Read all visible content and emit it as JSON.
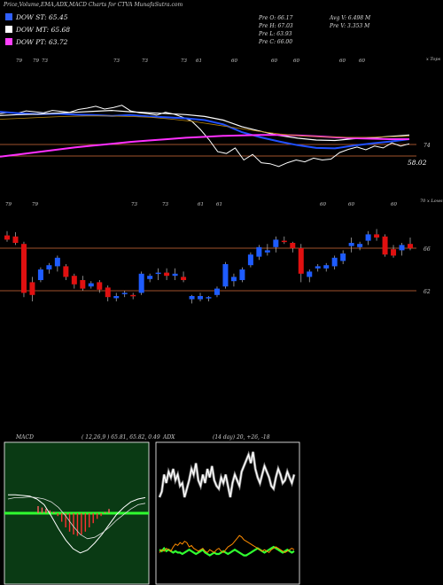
{
  "header": {
    "title": "Price,Volume,EMA,ADX,MACD Charts for CTVA MunafaSutra.com"
  },
  "legend": [
    {
      "label": "DOW ST: 65.45",
      "color": "#3060ff"
    },
    {
      "label": "DOW MT: 65.68",
      "color": "#ffffff"
    },
    {
      "label": "DOW PT: 63.72",
      "color": "#ff40ff"
    }
  ],
  "stats": {
    "open": "Pre  O: 66.17",
    "high": "Pre  H: 67.03",
    "low": "Pre  L: 63.93",
    "close": "Pre  C: 66.00",
    "avg_vol": "Avg V: 6.498  M",
    "pre_vol": "Pre  V: 3.353 M"
  },
  "colors": {
    "up": "#1e5cff",
    "down": "#e01010",
    "ema_short": "#2050ff",
    "ema_mid": "#ffffff",
    "ema_long": "#ff30ff",
    "level_line": "#a0522d",
    "macd_bg": "#0a3a14",
    "macd_signal": "#30ff30",
    "adx_line": "#ffffff",
    "di_plus": "#30ff30",
    "di_minus": "#ff8c00"
  },
  "chart_data": [
    {
      "type": "line",
      "title": "",
      "name": "ema-panel",
      "top_labels": [
        "79",
        "79",
        "73",
        "73",
        "73",
        "73",
        "61",
        "60",
        "60",
        "60",
        "60",
        "60"
      ],
      "right_labels": [
        "x Tops",
        "74",
        "58.02"
      ],
      "bottom_labels": [
        "79",
        "79",
        "73",
        "73",
        "61",
        "61",
        "60",
        "60",
        "60"
      ],
      "bottom_right_label": "70 x Lows",
      "series": [
        {
          "name": "DOW ST",
          "values": [
            75,
            74.7,
            74.5,
            74.6,
            74.4,
            74.3,
            74.1,
            74.3,
            74,
            73.8,
            73.6,
            73.2,
            72.3,
            70.6,
            69.5,
            68.6,
            67.8,
            67.2,
            67.1,
            67.7,
            68.2,
            68.6,
            69.1
          ]
        },
        {
          "name": "DOW MT",
          "values": [
            74.2,
            74.4,
            74.5,
            74.7,
            74.9,
            75.1,
            75.3,
            75,
            74.8,
            74.6,
            74.4,
            74,
            73.2,
            71.8,
            70.8,
            69.9,
            69.3,
            68.9,
            68.8,
            69.2,
            69.4,
            69.7,
            70
          ]
        },
        {
          "name": "DOW PT",
          "values": [
            65.3,
            65.8,
            66.3,
            66.8,
            67.3,
            67.7,
            68.1,
            68.5,
            68.8,
            69.1,
            69.4,
            69.6,
            69.8,
            69.9,
            70,
            70,
            69.9,
            69.7,
            69.5,
            69.3,
            69.2,
            69.1,
            69.1
          ]
        }
      ],
      "ylim": [
        58,
        80
      ]
    },
    {
      "type": "bar",
      "name": "candles",
      "right_labels": [
        "66",
        "62"
      ],
      "candles": [
        [
          67.2,
          67.6,
          66.6,
          66.8
        ],
        [
          67.1,
          67.5,
          66.3,
          66.5
        ],
        [
          66.4,
          66.6,
          61.4,
          61.8
        ],
        [
          62.8,
          63.3,
          61.0,
          61.6
        ],
        [
          63.0,
          64.2,
          62.8,
          64.0
        ],
        [
          64.0,
          64.6,
          63.6,
          64.4
        ],
        [
          64.3,
          65.3,
          63.8,
          65.1
        ],
        [
          64.3,
          64.5,
          63.0,
          63.3
        ],
        [
          63.4,
          63.6,
          62.2,
          62.6
        ],
        [
          63.0,
          63.4,
          62.0,
          62.2
        ],
        [
          62.4,
          62.9,
          62.2,
          62.7
        ],
        [
          62.8,
          63.0,
          61.8,
          62.1
        ],
        [
          62.3,
          62.5,
          61.0,
          61.4
        ],
        [
          61.3,
          61.8,
          61.0,
          61.5
        ],
        [
          61.7,
          62.0,
          61.4,
          61.8
        ],
        [
          61.6,
          61.8,
          61.2,
          61.5
        ],
        [
          61.8,
          63.8,
          61.6,
          63.6
        ],
        [
          63.1,
          63.6,
          62.8,
          63.4
        ],
        [
          63.6,
          64.1,
          63.0,
          63.7
        ],
        [
          63.7,
          64.1,
          63.0,
          63.4
        ],
        [
          63.4,
          64.1,
          63.0,
          63.6
        ],
        [
          63.3,
          63.8,
          62.8,
          63.0
        ],
        [
          61.2,
          61.6,
          60.8,
          61.5
        ],
        [
          61.2,
          61.8,
          61.0,
          61.5
        ],
        [
          61.3,
          61.5,
          61.0,
          61.4
        ],
        [
          61.6,
          62.4,
          61.4,
          62.2
        ],
        [
          62.4,
          64.7,
          62.2,
          64.5
        ],
        [
          62.9,
          63.6,
          62.4,
          63.3
        ],
        [
          63.0,
          64.2,
          62.8,
          64.0
        ],
        [
          64.4,
          65.6,
          64.2,
          65.4
        ],
        [
          65.2,
          66.3,
          64.9,
          66.1
        ],
        [
          65.6,
          66.4,
          65.3,
          65.8
        ],
        [
          66.1,
          67.1,
          65.6,
          66.8
        ],
        [
          66.7,
          67.1,
          66.4,
          66.6
        ],
        [
          66.5,
          66.6,
          65.6,
          66.0
        ],
        [
          66.0,
          66.4,
          62.8,
          63.6
        ],
        [
          63.3,
          64.0,
          62.8,
          63.8
        ],
        [
          64.1,
          64.5,
          63.8,
          64.3
        ],
        [
          64.1,
          64.6,
          63.8,
          64.4
        ],
        [
          64.3,
          65.3,
          64.0,
          65.1
        ],
        [
          64.8,
          65.8,
          64.5,
          65.5
        ],
        [
          66.2,
          67.0,
          65.6,
          66.5
        ],
        [
          66.1,
          66.6,
          65.8,
          66.4
        ],
        [
          66.7,
          67.6,
          66.3,
          67.3
        ],
        [
          67.3,
          67.8,
          66.7,
          67.0
        ],
        [
          67.1,
          67.3,
          65.2,
          65.4
        ],
        [
          65.9,
          66.3,
          65.1,
          65.3
        ],
        [
          65.8,
          66.5,
          65.3,
          66.3
        ],
        [
          66.4,
          67.0,
          65.8,
          66.0
        ]
      ],
      "ylim": [
        58.5,
        69
      ],
      "level_lines": [
        66,
        62
      ]
    },
    {
      "type": "bar",
      "name": "macd",
      "label": "MACD",
      "params": "( 12,26,9 ) 65.81,  65.82,  0.49",
      "histogram": [
        0.5,
        0.4,
        0.3,
        0.2,
        0.1,
        -0.2,
        -0.6,
        -1.0,
        -1.3,
        -1.5,
        -1.6,
        -1.5,
        -1.3,
        -1.0,
        -0.7,
        -0.4,
        -0.2,
        0.1,
        0.3
      ],
      "macd_line": [
        1.3,
        1.3,
        1.25,
        1.2,
        1.0,
        0.6,
        -0.2,
        -1.1,
        -1.9,
        -2.5,
        -2.8,
        -2.6,
        -2.1,
        -1.5,
        -0.8,
        -0.1,
        0.4,
        0.8,
        1.0,
        1.1
      ],
      "signal_line": [
        1.0,
        1.1,
        1.1,
        1.15,
        1.1,
        1.0,
        0.8,
        0.4,
        -0.2,
        -0.9,
        -1.5,
        -1.8,
        -1.7,
        -1.4,
        -1.0,
        -0.5,
        -0.1,
        0.3,
        0.6,
        0.7
      ],
      "ylim": [
        -5,
        5
      ]
    },
    {
      "type": "line",
      "name": "adx",
      "label": "ADX",
      "params": "(14  day) 20,  +26,  -18",
      "series": [
        {
          "name": "ADX",
          "values": [
            30,
            34,
            46,
            40,
            48,
            44,
            50,
            42,
            46,
            38,
            40,
            30,
            36,
            42,
            50,
            46,
            54,
            42,
            38,
            46,
            40,
            50,
            44,
            52,
            42,
            38,
            36,
            44,
            40,
            46,
            38,
            30,
            40,
            46,
            42,
            38,
            48,
            52,
            56,
            60,
            54,
            62,
            50,
            44,
            40,
            46,
            52,
            48,
            44,
            38,
            36,
            44,
            50,
            46,
            40,
            42,
            48,
            44,
            40,
            46
          ]
        },
        {
          "name": "+DI",
          "values": [
            18,
            17,
            19,
            17,
            18,
            17,
            16,
            17,
            16,
            16,
            15,
            16,
            17,
            18,
            17,
            16,
            15,
            16,
            17,
            18,
            16,
            15,
            14,
            15,
            16,
            15,
            15,
            16,
            17,
            16,
            15,
            16,
            17,
            18,
            17,
            16,
            15,
            14,
            14,
            15,
            16,
            17,
            18,
            19,
            18,
            17,
            16,
            17,
            18,
            19,
            20,
            19,
            18,
            17,
            16,
            17,
            18,
            17,
            16,
            17
          ]
        },
        {
          "name": "-DI",
          "values": [
            16,
            18,
            17,
            19,
            18,
            17,
            20,
            22,
            21,
            23,
            22,
            24,
            23,
            20,
            21,
            19,
            18,
            17,
            18,
            19,
            17,
            16,
            18,
            17,
            16,
            18,
            19,
            17,
            16,
            18,
            20,
            21,
            22,
            24,
            26,
            28,
            27,
            25,
            24,
            23,
            22,
            21,
            20,
            19,
            18,
            17,
            18,
            17,
            16,
            18,
            19,
            20,
            19,
            18,
            17,
            16,
            17,
            18,
            19,
            18
          ]
        }
      ],
      "ylim": [
        0,
        100
      ]
    }
  ]
}
